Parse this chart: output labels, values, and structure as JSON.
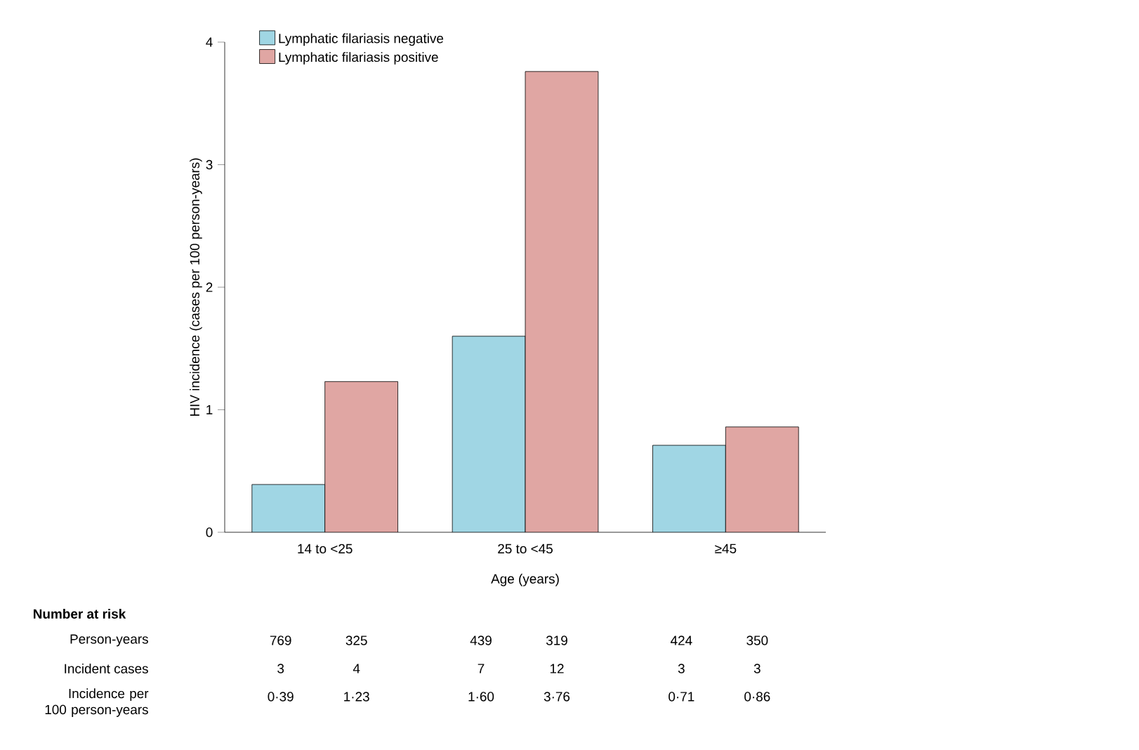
{
  "chart_data": {
    "type": "bar",
    "xlabel": "Age (years)",
    "ylabel": "HIV incidence (cases per 100 person-years)",
    "categories": [
      "14 to <25",
      "25 to <45",
      "≥45"
    ],
    "series": [
      {
        "name": "Lymphatic filariasis negative",
        "color": "#a0d6e4",
        "values": [
          0.39,
          1.6,
          0.71
        ]
      },
      {
        "name": "Lymphatic filariasis positive",
        "color": "#e0a6a3",
        "values": [
          1.23,
          3.76,
          0.86
        ]
      }
    ],
    "ylim": [
      0,
      4
    ],
    "yticks": [
      0,
      1,
      2,
      3,
      4
    ],
    "grid": false,
    "legend": "top left",
    "annotations": [
      "Number at risk",
      "Person-years",
      "Incident cases",
      "Incidence per 100 person-years",
      "769",
      "325",
      "439",
      "319",
      "424",
      "350",
      "3",
      "4",
      "7",
      "12",
      "3",
      "3",
      "0·39",
      "1·23",
      "1·60",
      "3·76",
      "0·71",
      "0·86"
    ]
  }
}
